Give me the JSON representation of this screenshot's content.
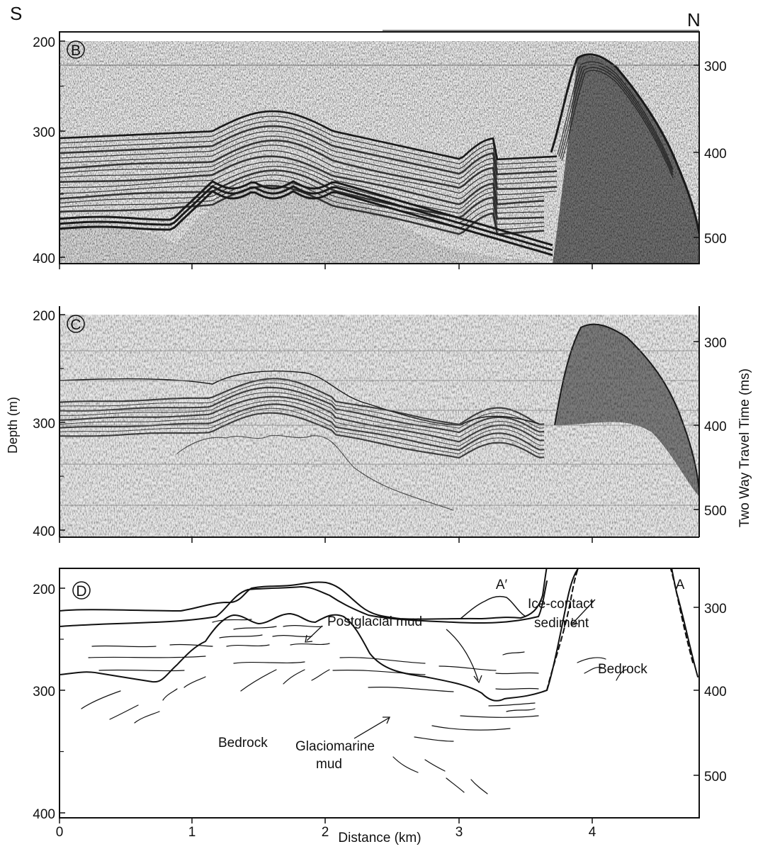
{
  "orientation": {
    "left": "S",
    "right": "N"
  },
  "axes": {
    "left_label": "Depth (m)",
    "right_label": "Two Way Travel Time (ms)",
    "bottom_label": "Distance (km)",
    "x_ticks": [
      "0",
      "1",
      "2",
      "3",
      "4"
    ],
    "depth_ticks": [
      "200",
      "300",
      "400"
    ],
    "twtt_ticks": [
      "300",
      "400",
      "500"
    ]
  },
  "panels": [
    {
      "id": "B",
      "kind": "seismic-profile"
    },
    {
      "id": "C",
      "kind": "seismic-profile"
    },
    {
      "id": "D",
      "kind": "interpretation"
    }
  ],
  "annotations": {
    "a_prime": "A′",
    "a": "A",
    "postglacial": "Postglacial mud",
    "ice_contact_1": "Ice-contact",
    "ice_contact_2": "sediment",
    "glaciomarine_1": "Glaciomarine",
    "glaciomarine_2": "mud",
    "bedrock_left": "Bedrock",
    "bedrock_right": "Bedrock"
  },
  "colors": {
    "ink": "#111111",
    "paper": "#ececec",
    "grid": "#7a7a7a"
  }
}
